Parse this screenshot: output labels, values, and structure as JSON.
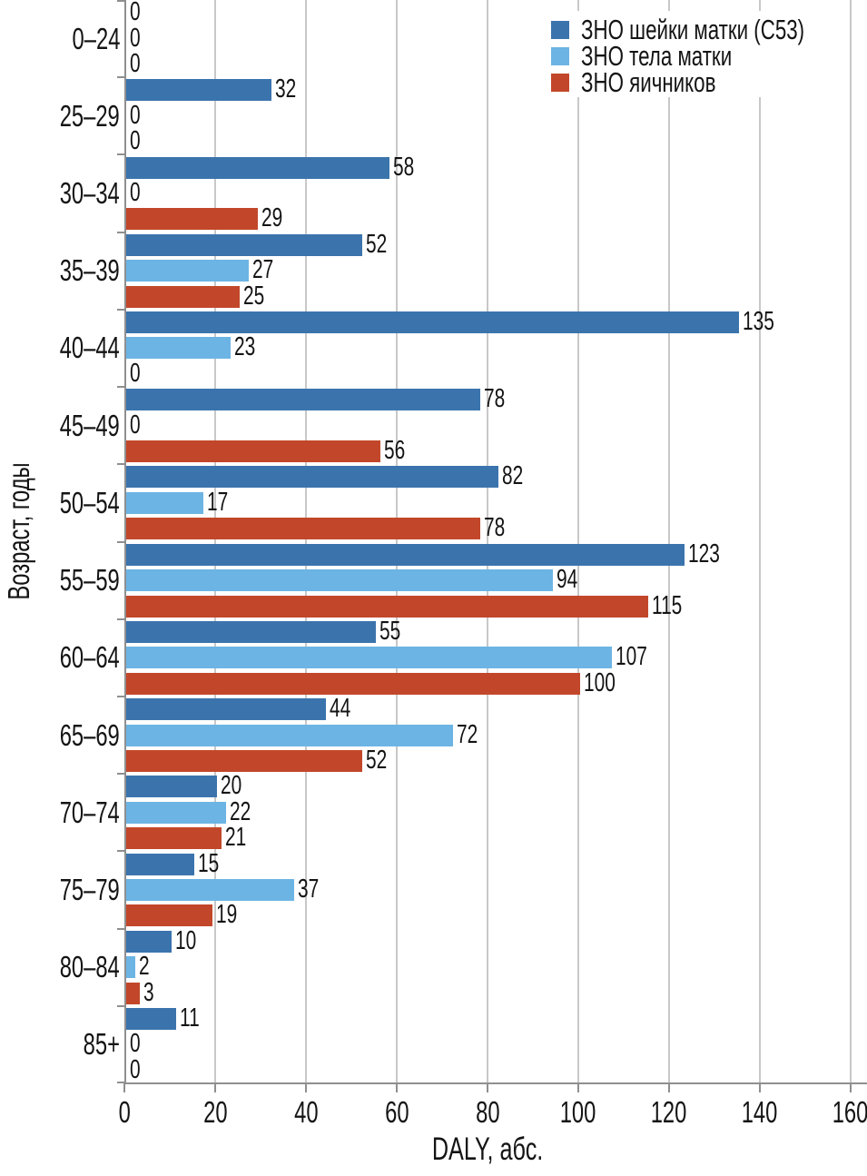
{
  "chart_data": {
    "type": "bar",
    "orientation": "horizontal",
    "title": "",
    "xlabel": "DALY, абс.",
    "ylabel": "Возраст, годы",
    "xlim": [
      0,
      160
    ],
    "xticks": [
      0,
      20,
      40,
      60,
      80,
      100,
      120,
      140,
      160
    ],
    "grid": true,
    "legend_position": "top-right",
    "categories": [
      "0–24",
      "25–29",
      "30–34",
      "35–39",
      "40–44",
      "45–49",
      "50–54",
      "55–59",
      "60–64",
      "65–69",
      "70–74",
      "75–79",
      "80–84",
      "85+"
    ],
    "series": [
      {
        "name": "ЗНО шейки матки (C53)",
        "color": "#3b74ad",
        "values": [
          0,
          32,
          58,
          52,
          135,
          78,
          82,
          123,
          55,
          44,
          20,
          15,
          10,
          11
        ]
      },
      {
        "name": "ЗНО тела матки",
        "color": "#6cb4e4",
        "values": [
          0,
          0,
          0,
          27,
          23,
          0,
          17,
          94,
          107,
          72,
          22,
          37,
          2,
          0
        ]
      },
      {
        "name": "ЗНО яичников",
        "color": "#c2472a",
        "values": [
          0,
          0,
          29,
          25,
          0,
          56,
          78,
          115,
          100,
          52,
          21,
          19,
          3,
          0
        ]
      }
    ]
  },
  "colors": {
    "axis": "#8f8f8f",
    "gridline": "#c8c8c8",
    "text": "#141414",
    "background": "#ffffff"
  }
}
